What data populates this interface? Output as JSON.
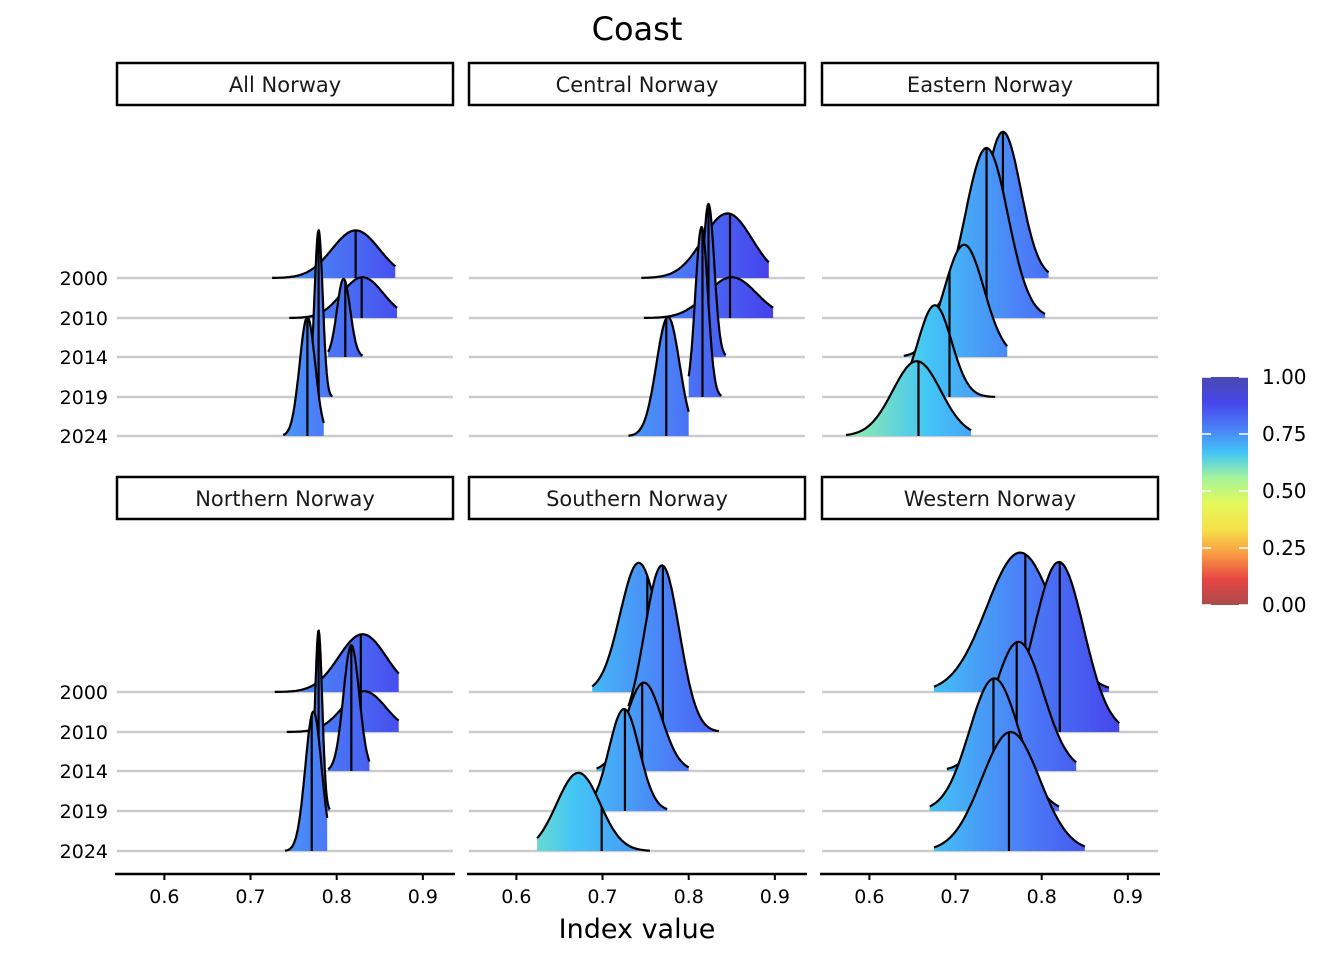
{
  "chart_data": {
    "type": "ridgeline",
    "title": "Coast",
    "xlabel": "Index value",
    "ylabel": "",
    "xlim": [
      0.545,
      0.935
    ],
    "x_ticks": [
      0.6,
      0.7,
      0.8,
      0.9
    ],
    "x_tick_labels": [
      "0.6",
      "0.7",
      "0.8",
      "0.9"
    ],
    "y_categories": [
      "2000",
      "2010",
      "2014",
      "2019",
      "2024"
    ],
    "grid": "horizontal baselines",
    "fill": "gradient by index value",
    "legend": {
      "type": "colorbar",
      "position": "right",
      "ticks": [
        0.0,
        0.25,
        0.5,
        0.75,
        1.0
      ],
      "tick_labels": [
        "0.00",
        "0.25",
        "0.50",
        "0.75",
        "1.00"
      ],
      "colors": [
        "#a94b4b",
        "#e84545",
        "#f99a42",
        "#f6e14a",
        "#e5f85a",
        "#a6f59a",
        "#43c6f5",
        "#4b7ef7",
        "#4646ec",
        "#4a4aaf"
      ]
    },
    "panels": [
      {
        "name": "All Norway",
        "ridges": [
          {
            "year": "2000",
            "median": 0.822,
            "peak": 0.822,
            "height": 1.4,
            "range": [
              0.725,
              0.868
            ],
            "note": "small bump near 0.74"
          },
          {
            "year": "2010",
            "median": 0.829,
            "peak": 0.83,
            "height": 1.2,
            "range": [
              0.745,
              0.87
            ]
          },
          {
            "year": "2014",
            "median": 0.81,
            "peak": 0.808,
            "height": 2.3,
            "range": [
              0.79,
              0.83
            ]
          },
          {
            "year": "2019",
            "median": 0.779,
            "peak": 0.779,
            "height": 4.9,
            "range": [
              0.77,
              0.795
            ]
          },
          {
            "year": "2024",
            "median": 0.766,
            "peak": 0.766,
            "height": 3.5,
            "range": [
              0.738,
              0.785
            ]
          }
        ]
      },
      {
        "name": "Central Norway",
        "ridges": [
          {
            "year": "2000",
            "median": 0.848,
            "peak": 0.845,
            "height": 1.9,
            "range": [
              0.745,
              0.893
            ]
          },
          {
            "year": "2010",
            "median": 0.848,
            "peak": 0.85,
            "height": 1.2,
            "range": [
              0.748,
              0.898
            ]
          },
          {
            "year": "2014",
            "median": 0.823,
            "peak": 0.823,
            "height": 4.5,
            "range": [
              0.808,
              0.843
            ]
          },
          {
            "year": "2019",
            "median": 0.816,
            "peak": 0.815,
            "height": 5.0,
            "range": [
              0.8,
              0.838
            ]
          },
          {
            "year": "2024",
            "median": 0.774,
            "peak": 0.776,
            "height": 3.5,
            "range": [
              0.73,
              0.8
            ]
          }
        ]
      },
      {
        "name": "Eastern Norway",
        "ridges": [
          {
            "year": "2000",
            "median": 0.755,
            "peak": 0.755,
            "height": 4.3,
            "range": [
              0.7,
              0.808
            ]
          },
          {
            "year": "2010",
            "median": 0.736,
            "peak": 0.736,
            "height": 5.0,
            "range": [
              0.675,
              0.804
            ]
          },
          {
            "year": "2014",
            "median": 0.693,
            "peak": 0.71,
            "height": 3.3,
            "range": [
              0.64,
              0.76
            ]
          },
          {
            "year": "2019",
            "median": 0.693,
            "peak": 0.676,
            "height": 2.7,
            "range": [
              0.645,
              0.746
            ]
          },
          {
            "year": "2024",
            "median": 0.657,
            "peak": 0.655,
            "height": 2.2,
            "range": [
              0.573,
              0.718
            ]
          }
        ]
      },
      {
        "name": "Northern Norway",
        "ridges": [
          {
            "year": "2000",
            "median": 0.828,
            "peak": 0.83,
            "height": 1.7,
            "range": [
              0.728,
              0.872
            ]
          },
          {
            "year": "2010",
            "median": 0.828,
            "peak": 0.832,
            "height": 1.2,
            "range": [
              0.742,
              0.872
            ]
          },
          {
            "year": "2014",
            "median": 0.817,
            "peak": 0.817,
            "height": 3.7,
            "range": [
              0.79,
              0.838
            ]
          },
          {
            "year": "2019",
            "median": 0.779,
            "peak": 0.779,
            "height": 5.3,
            "range": [
              0.77,
              0.792
            ]
          },
          {
            "year": "2024",
            "median": 0.771,
            "peak": 0.773,
            "height": 4.1,
            "range": [
              0.74,
              0.789
            ]
          }
        ]
      },
      {
        "name": "Southern Norway",
        "ridges": [
          {
            "year": "2000",
            "median": 0.752,
            "peak": 0.742,
            "height": 3.8,
            "range": [
              0.688,
              0.8
            ]
          },
          {
            "year": "2010",
            "median": 0.77,
            "peak": 0.769,
            "height": 4.9,
            "range": [
              0.73,
              0.835
            ]
          },
          {
            "year": "2014",
            "median": 0.746,
            "peak": 0.748,
            "height": 2.6,
            "range": [
              0.693,
              0.8
            ]
          },
          {
            "year": "2019",
            "median": 0.726,
            "peak": 0.725,
            "height": 3.0,
            "range": [
              0.683,
              0.775
            ]
          },
          {
            "year": "2024",
            "median": 0.699,
            "peak": 0.672,
            "height": 2.3,
            "range": [
              0.624,
              0.755
            ]
          }
        ]
      },
      {
        "name": "Western Norway",
        "ridges": [
          {
            "year": "2000",
            "median": 0.781,
            "peak": 0.775,
            "height": 4.1,
            "range": [
              0.675,
              0.878
            ]
          },
          {
            "year": "2010",
            "median": 0.821,
            "peak": 0.82,
            "height": 5.0,
            "range": [
              0.74,
              0.89
            ]
          },
          {
            "year": "2014",
            "median": 0.771,
            "peak": 0.773,
            "height": 3.8,
            "range": [
              0.69,
              0.84
            ]
          },
          {
            "year": "2019",
            "median": 0.744,
            "peak": 0.745,
            "height": 3.9,
            "range": [
              0.67,
              0.82
            ]
          },
          {
            "year": "2024",
            "median": 0.762,
            "peak": 0.764,
            "height": 3.5,
            "range": [
              0.675,
              0.85
            ]
          }
        ]
      }
    ]
  }
}
